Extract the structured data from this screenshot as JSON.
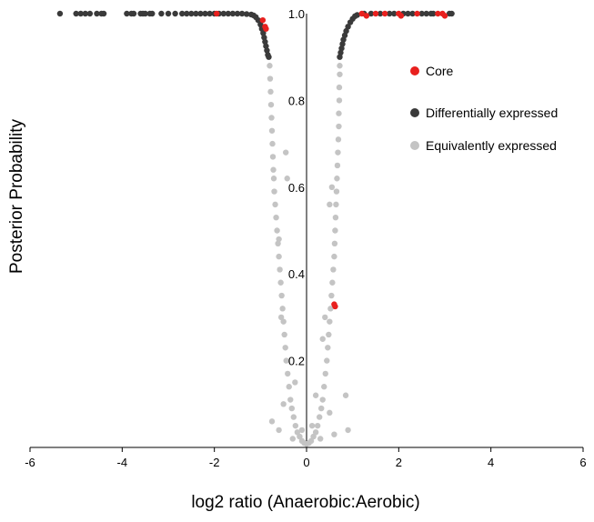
{
  "chart_data": {
    "type": "scatter",
    "title": "",
    "xlabel": "log2 ratio (Anaerobic:Aerobic)",
    "ylabel": "Posterior Probability",
    "xlim": [
      -6,
      6
    ],
    "ylim": [
      0,
      1.0
    ],
    "x_ticks": [
      -6,
      -4,
      -2,
      0,
      2,
      4,
      6
    ],
    "y_ticks": [
      0.2,
      0.4,
      0.6,
      0.8,
      1.0
    ],
    "x_tick_labels": [
      "-6",
      "-4",
      "-2",
      "0",
      "2",
      "4",
      "6"
    ],
    "y_tick_labels": [
      "0.2",
      "0.4",
      "0.6",
      "0.8",
      "1.0"
    ],
    "grid": false,
    "legend_position": "right",
    "colors": {
      "core": "#e8201e",
      "differential": "#3a3a3a",
      "equivalent": "#c4c4c4"
    },
    "series": [
      {
        "name": "Core",
        "color": "#e8201e",
        "points": [
          [
            -1.95,
            1.0
          ],
          [
            -0.95,
            0.985
          ],
          [
            -0.9,
            0.97
          ],
          [
            -0.88,
            0.965
          ],
          [
            0.6,
            0.33
          ],
          [
            0.62,
            0.325
          ],
          [
            1.2,
            1.0
          ],
          [
            1.3,
            0.995
          ],
          [
            1.5,
            1.0
          ],
          [
            1.7,
            1.0
          ],
          [
            2.0,
            1.0
          ],
          [
            2.05,
            0.995
          ],
          [
            2.4,
            1.0
          ],
          [
            2.85,
            1.0
          ],
          [
            2.95,
            1.0
          ],
          [
            3.0,
            0.995
          ]
        ]
      },
      {
        "name": "Differentially expressed",
        "color": "#3a3a3a",
        "points": [
          [
            -5.35,
            1.0
          ],
          [
            -5.0,
            1.0
          ],
          [
            -4.9,
            1.0
          ],
          [
            -4.8,
            1.0
          ],
          [
            -4.7,
            1.0
          ],
          [
            -4.55,
            1.0
          ],
          [
            -4.45,
            1.0
          ],
          [
            -4.4,
            1.0
          ],
          [
            -3.9,
            1.0
          ],
          [
            -3.8,
            1.0
          ],
          [
            -3.75,
            1.0
          ],
          [
            -3.6,
            1.0
          ],
          [
            -3.55,
            1.0
          ],
          [
            -3.5,
            1.0
          ],
          [
            -3.4,
            1.0
          ],
          [
            -3.35,
            1.0
          ],
          [
            -3.15,
            1.0
          ],
          [
            -3.0,
            1.0
          ],
          [
            -2.85,
            1.0
          ],
          [
            -2.7,
            1.0
          ],
          [
            -2.6,
            1.0
          ],
          [
            -2.5,
            1.0
          ],
          [
            -2.4,
            1.0
          ],
          [
            -2.3,
            1.0
          ],
          [
            -2.2,
            1.0
          ],
          [
            -2.1,
            1.0
          ],
          [
            -2.0,
            1.0
          ],
          [
            -1.9,
            1.0
          ],
          [
            -1.8,
            1.0
          ],
          [
            -1.7,
            1.0
          ],
          [
            -1.6,
            1.0
          ],
          [
            -1.5,
            1.0
          ],
          [
            -1.4,
            1.0
          ],
          [
            -1.3,
            0.999
          ],
          [
            -1.2,
            0.998
          ],
          [
            -1.15,
            0.996
          ],
          [
            -1.1,
            0.992
          ],
          [
            -1.05,
            0.985
          ],
          [
            -1.0,
            0.975
          ],
          [
            -0.97,
            0.965
          ],
          [
            -0.94,
            0.955
          ],
          [
            -0.92,
            0.945
          ],
          [
            -0.9,
            0.935
          ],
          [
            -0.88,
            0.925
          ],
          [
            -0.86,
            0.915
          ],
          [
            -0.84,
            0.905
          ],
          [
            -0.82,
            0.9
          ],
          [
            0.72,
            0.9
          ],
          [
            0.74,
            0.91
          ],
          [
            0.76,
            0.92
          ],
          [
            0.78,
            0.93
          ],
          [
            0.8,
            0.94
          ],
          [
            0.83,
            0.95
          ],
          [
            0.86,
            0.96
          ],
          [
            0.9,
            0.97
          ],
          [
            0.95,
            0.98
          ],
          [
            1.0,
            0.988
          ],
          [
            1.05,
            0.994
          ],
          [
            1.1,
            0.997
          ],
          [
            1.25,
            1.0
          ],
          [
            1.4,
            1.0
          ],
          [
            1.6,
            1.0
          ],
          [
            1.8,
            1.0
          ],
          [
            1.9,
            1.0
          ],
          [
            2.1,
            1.0
          ],
          [
            2.2,
            1.0
          ],
          [
            2.3,
            1.0
          ],
          [
            2.5,
            1.0
          ],
          [
            2.6,
            1.0
          ],
          [
            2.7,
            1.0
          ],
          [
            2.75,
            1.0
          ],
          [
            3.1,
            1.0
          ],
          [
            3.15,
            1.0
          ]
        ]
      },
      {
        "name": "Equivalently expressed",
        "color": "#c4c4c4",
        "points": [
          [
            -0.8,
            0.88
          ],
          [
            -0.79,
            0.85
          ],
          [
            -0.78,
            0.82
          ],
          [
            -0.77,
            0.79
          ],
          [
            -0.76,
            0.76
          ],
          [
            -0.75,
            0.73
          ],
          [
            -0.74,
            0.7
          ],
          [
            -0.73,
            0.67
          ],
          [
            -0.72,
            0.64
          ],
          [
            -0.71,
            0.62
          ],
          [
            -0.7,
            0.59
          ],
          [
            -0.68,
            0.56
          ],
          [
            -0.66,
            0.53
          ],
          [
            -0.64,
            0.5
          ],
          [
            -0.62,
            0.47
          ],
          [
            -0.6,
            0.44
          ],
          [
            -0.58,
            0.41
          ],
          [
            -0.56,
            0.38
          ],
          [
            -0.54,
            0.35
          ],
          [
            -0.52,
            0.32
          ],
          [
            -0.5,
            0.29
          ],
          [
            -0.48,
            0.26
          ],
          [
            -0.46,
            0.23
          ],
          [
            -0.44,
            0.2
          ],
          [
            -0.41,
            0.17
          ],
          [
            -0.38,
            0.14
          ],
          [
            -0.35,
            0.11
          ],
          [
            -0.32,
            0.09
          ],
          [
            -0.28,
            0.07
          ],
          [
            -0.24,
            0.05
          ],
          [
            -0.2,
            0.035
          ],
          [
            -0.15,
            0.025
          ],
          [
            -0.1,
            0.015
          ],
          [
            -0.05,
            0.01
          ],
          [
            0.0,
            0.008
          ],
          [
            0.05,
            0.01
          ],
          [
            0.1,
            0.015
          ],
          [
            0.15,
            0.025
          ],
          [
            0.2,
            0.035
          ],
          [
            0.24,
            0.05
          ],
          [
            0.28,
            0.07
          ],
          [
            0.32,
            0.09
          ],
          [
            0.35,
            0.11
          ],
          [
            0.38,
            0.14
          ],
          [
            0.41,
            0.17
          ],
          [
            0.44,
            0.2
          ],
          [
            0.46,
            0.23
          ],
          [
            0.48,
            0.26
          ],
          [
            0.5,
            0.29
          ],
          [
            0.52,
            0.32
          ],
          [
            0.54,
            0.35
          ],
          [
            0.56,
            0.38
          ],
          [
            0.58,
            0.41
          ],
          [
            0.6,
            0.44
          ],
          [
            0.61,
            0.47
          ],
          [
            0.62,
            0.5
          ],
          [
            0.63,
            0.53
          ],
          [
            0.64,
            0.56
          ],
          [
            0.65,
            0.59
          ],
          [
            0.66,
            0.62
          ],
          [
            0.67,
            0.65
          ],
          [
            0.68,
            0.68
          ],
          [
            0.69,
            0.71
          ],
          [
            0.7,
            0.74
          ],
          [
            0.7,
            0.77
          ],
          [
            0.71,
            0.8
          ],
          [
            0.71,
            0.83
          ],
          [
            0.72,
            0.86
          ],
          [
            0.72,
            0.88
          ],
          [
            -0.45,
            0.68
          ],
          [
            -0.42,
            0.62
          ],
          [
            -0.6,
            0.48
          ],
          [
            -0.55,
            0.3
          ],
          [
            0.4,
            0.3
          ],
          [
            0.35,
            0.25
          ],
          [
            0.55,
            0.6
          ],
          [
            0.5,
            0.56
          ],
          [
            -0.5,
            0.1
          ],
          [
            0.5,
            0.08
          ],
          [
            -0.6,
            0.04
          ],
          [
            0.6,
            0.03
          ],
          [
            -0.3,
            0.02
          ],
          [
            0.3,
            0.02
          ],
          [
            -0.1,
            0.04
          ],
          [
            0.12,
            0.05
          ],
          [
            0.85,
            0.12
          ],
          [
            -0.75,
            0.06
          ],
          [
            0.9,
            0.04
          ],
          [
            0.2,
            0.12
          ],
          [
            -0.25,
            0.15
          ]
        ]
      }
    ]
  }
}
